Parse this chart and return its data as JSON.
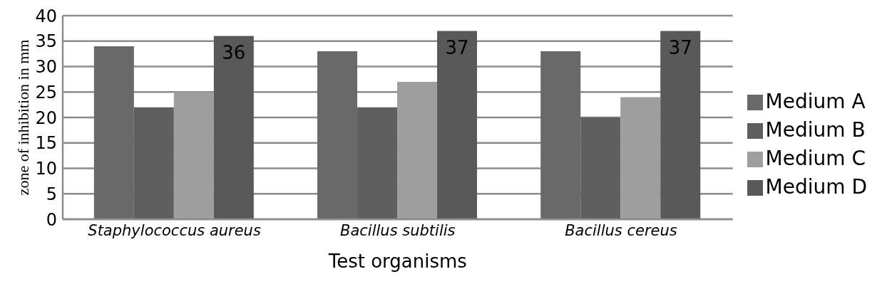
{
  "chart_data": {
    "type": "bar",
    "xlabel": "Test organisms",
    "ylabel": "zone of inhibition in mm",
    "categories": [
      "Staphylococcus aureus",
      "Bacillus subtilis",
      "Bacillus cereus"
    ],
    "series": [
      {
        "name": "Medium A",
        "color": "#696969",
        "values": [
          34,
          33,
          33
        ]
      },
      {
        "name": "Medium B",
        "color": "#5f5f5f",
        "values": [
          22,
          22,
          20
        ]
      },
      {
        "name": "Medium C",
        "color": "#9e9e9e",
        "values": [
          25,
          27,
          24
        ]
      },
      {
        "name": "Medium D",
        "color": "#595959",
        "values": [
          36,
          37,
          37
        ],
        "value_labels": [
          "36",
          "37",
          "37"
        ]
      }
    ],
    "ylim": [
      0,
      40
    ],
    "yticks": [
      0,
      5,
      10,
      15,
      20,
      25,
      30,
      35,
      40
    ],
    "grid": "y",
    "legend": "right"
  }
}
